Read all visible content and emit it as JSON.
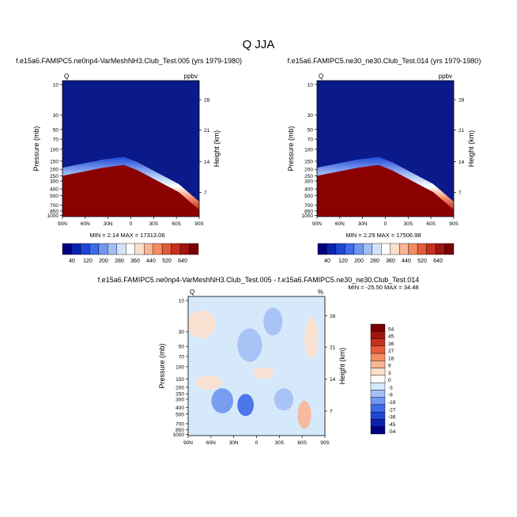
{
  "figure_title": "Q JJA",
  "colors": {
    "panel_fill": "#0a1a8a",
    "band_fill": "#8b0000",
    "diff_background": "#d6e9fb"
  },
  "chart_data": [
    {
      "type": "heatmap",
      "title": "f.e15a6.FAMIPC5.ne0np4-VarMeshNH3.Club_Test.005 (yrs 1979-1980)",
      "left_label": "Q",
      "right_label": "ppbv",
      "xlabel": "",
      "ylabel": "Pressure (mb)",
      "y2label": "Height (km)",
      "x_ticks": [
        "90N",
        "60N",
        "30N",
        "0",
        "30S",
        "60S",
        "90S"
      ],
      "y_ticks": [
        "10",
        "30",
        "50",
        "70",
        "100",
        "150",
        "200",
        "250",
        "300",
        "400",
        "500",
        "700",
        "850",
        "1000"
      ],
      "y2_ticks": [
        "28",
        "21",
        "14",
        "7"
      ],
      "stats": "MIN =   2.14  MAX = 17313.06",
      "min": 2.14,
      "max": 17313.06,
      "colorbar_labels": [
        "40",
        "120",
        "200",
        "280",
        "360",
        "440",
        "520",
        "640"
      ],
      "colorbar_colors": [
        "#00007f",
        "#0a22b0",
        "#1f45d6",
        "#3d6ae8",
        "#6f96f0",
        "#a3bff5",
        "#d5e3f9",
        "#ffffff",
        "#fde0cc",
        "#f9b595",
        "#f38b63",
        "#e55b3a",
        "#c8301e",
        "#a0150f",
        "#7a0000"
      ]
    },
    {
      "type": "heatmap",
      "title": "f.e15a6.FAMIPC5.ne30_ne30.Club_Test.014 (yrs 1979-1980)",
      "left_label": "Q",
      "right_label": "ppbv",
      "xlabel": "",
      "ylabel": "Pressure (mb)",
      "y2label": "Height (km)",
      "x_ticks": [
        "90N",
        "60N",
        "30N",
        "0",
        "30S",
        "60S",
        "90S"
      ],
      "y_ticks": [
        "10",
        "30",
        "50",
        "70",
        "100",
        "150",
        "200",
        "250",
        "300",
        "400",
        "500",
        "700",
        "850",
        "1000"
      ],
      "y2_ticks": [
        "28",
        "21",
        "14",
        "7"
      ],
      "stats": "MIN =   2.29  MAX = 17506.98",
      "min": 2.29,
      "max": 17506.98,
      "colorbar_labels": [
        "40",
        "120",
        "200",
        "280",
        "360",
        "440",
        "520",
        "640"
      ],
      "colorbar_colors": [
        "#00007f",
        "#0a22b0",
        "#1f45d6",
        "#3d6ae8",
        "#6f96f0",
        "#a3bff5",
        "#d5e3f9",
        "#ffffff",
        "#fde0cc",
        "#f9b595",
        "#f38b63",
        "#e55b3a",
        "#c8301e",
        "#a0150f",
        "#7a0000"
      ]
    },
    {
      "type": "heatmap",
      "title": "f.e15a6.FAMIPC5.ne0np4-VarMeshNH3.Club_Test.005 - f.e15a6.FAMIPC5.ne30_ne30.Club_Test.014",
      "left_label": "Q",
      "right_label": "%",
      "xlabel": "",
      "ylabel": "Pressure (mb)",
      "y2label": "Height (km)",
      "x_ticks": [
        "90N",
        "60N",
        "30N",
        "0",
        "30S",
        "60S",
        "90S"
      ],
      "y_ticks": [
        "10",
        "30",
        "50",
        "70",
        "100",
        "150",
        "200",
        "250",
        "300",
        "400",
        "500",
        "700",
        "850",
        "1000"
      ],
      "y2_ticks": [
        "28",
        "21",
        "14",
        "7"
      ],
      "stats": "MIN = -25.50  MAX =  34.48",
      "min": -25.5,
      "max": 34.48,
      "colorbar_labels": [
        "54",
        "45",
        "36",
        "27",
        "18",
        "9",
        "3",
        "0",
        "-3",
        "-9",
        "-18",
        "-27",
        "-36",
        "-45",
        "-54"
      ],
      "colorbar_colors": [
        "#7a0000",
        "#a0150f",
        "#c8301e",
        "#e55b3a",
        "#f38b63",
        "#f9b595",
        "#fde0cc",
        "#ffffff",
        "#d6e9fb",
        "#a3bff5",
        "#6f96f0",
        "#3d6ae8",
        "#1f45d6",
        "#0a22b0",
        "#00007f"
      ]
    }
  ]
}
